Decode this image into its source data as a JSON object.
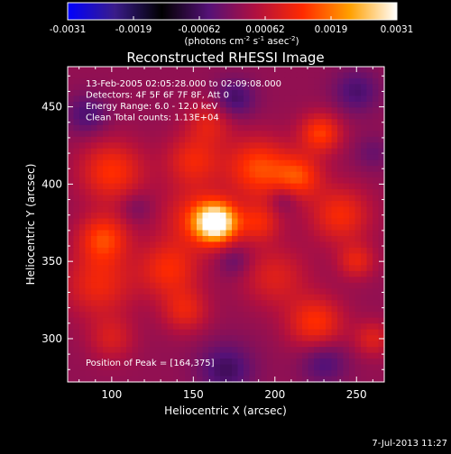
{
  "chart_data": {
    "type": "heatmap",
    "title": "Reconstructed RHESSI Image",
    "xlabel": "Heliocentric X (arcsec)",
    "ylabel": "Heliocentric Y (arcsec)",
    "xlim": [
      73,
      267
    ],
    "ylim": [
      272,
      476
    ],
    "xticks": [
      100,
      150,
      200,
      250
    ],
    "yticks": [
      300,
      350,
      400,
      450
    ],
    "colorbar": {
      "range": [
        -0.0031,
        0.0031
      ],
      "ticks": [
        "-0.0031",
        "-0.0019",
        "-0.00062",
        "0.00062",
        "0.0019",
        "0.0031"
      ],
      "unit_label": "(photons cm",
      "unit_sup1": "-2",
      "unit_mid1": " s",
      "unit_sup2": "-1",
      "unit_mid2": " asec",
      "unit_sup3": "-2",
      "unit_end": ")",
      "colormap": [
        "#0000ff",
        "#3a1c8a",
        "#000000",
        "#551177",
        "#b01040",
        "#ff2a00",
        "#ffa000",
        "#ffffff"
      ]
    },
    "annotations": [
      "13-Feb-2005 02:05:28.000 to 02:09:08.000",
      "Detectors: 4F 5F 6F 7F 8F, Att 0",
      "Energy Range: 6.0 - 12.0 keV",
      "Clean     Total counts: 1.13E+04"
    ],
    "peak_label": "Position of Peak = [164,375]",
    "peak": {
      "x": 164,
      "y": 375,
      "value": 0.0031
    },
    "sources": [
      {
        "x": 164,
        "y": 375,
        "sigma": 9,
        "amp": 0.0031
      },
      {
        "x": 150,
        "y": 378,
        "sigma": 14,
        "amp": 0.0009
      },
      {
        "x": 95,
        "y": 365,
        "sigma": 11,
        "amp": 0.0013
      },
      {
        "x": 100,
        "y": 408,
        "sigma": 14,
        "amp": 0.0012
      },
      {
        "x": 92,
        "y": 335,
        "sigma": 15,
        "amp": 0.001
      },
      {
        "x": 135,
        "y": 345,
        "sigma": 13,
        "amp": 0.0011
      },
      {
        "x": 145,
        "y": 318,
        "sigma": 10,
        "amp": 0.0009
      },
      {
        "x": 150,
        "y": 415,
        "sigma": 12,
        "amp": 0.001
      },
      {
        "x": 190,
        "y": 410,
        "sigma": 14,
        "amp": 0.0014
      },
      {
        "x": 215,
        "y": 405,
        "sigma": 10,
        "amp": 0.0012
      },
      {
        "x": 228,
        "y": 433,
        "sigma": 9,
        "amp": 0.0013
      },
      {
        "x": 240,
        "y": 380,
        "sigma": 13,
        "amp": 0.0011
      },
      {
        "x": 250,
        "y": 350,
        "sigma": 8,
        "amp": 0.0009
      },
      {
        "x": 225,
        "y": 310,
        "sigma": 12,
        "amp": 0.0012
      },
      {
        "x": 200,
        "y": 340,
        "sigma": 14,
        "amp": 0.0008
      },
      {
        "x": 190,
        "y": 375,
        "sigma": 9,
        "amp": 0.001
      },
      {
        "x": 160,
        "y": 440,
        "sigma": 10,
        "amp": 0.0008
      },
      {
        "x": 100,
        "y": 300,
        "sigma": 10,
        "amp": 0.0007
      },
      {
        "x": 260,
        "y": 300,
        "sigma": 8,
        "amp": 0.0008
      },
      {
        "x": 85,
        "y": 445,
        "sigma": 9,
        "amp": -0.0007
      },
      {
        "x": 175,
        "y": 455,
        "sigma": 9,
        "amp": -0.0008
      },
      {
        "x": 250,
        "y": 460,
        "sigma": 10,
        "amp": -0.0007
      },
      {
        "x": 170,
        "y": 280,
        "sigma": 12,
        "amp": -0.0008
      },
      {
        "x": 230,
        "y": 285,
        "sigma": 10,
        "amp": -0.0007
      },
      {
        "x": 205,
        "y": 390,
        "sigma": 6,
        "amp": -0.0005
      },
      {
        "x": 175,
        "y": 350,
        "sigma": 7,
        "amp": -0.0005
      },
      {
        "x": 115,
        "y": 385,
        "sigma": 7,
        "amp": -0.0004
      },
      {
        "x": 260,
        "y": 420,
        "sigma": 8,
        "amp": -0.0004
      }
    ]
  },
  "footer": {
    "date": "7-Jul-2013 11:27"
  }
}
